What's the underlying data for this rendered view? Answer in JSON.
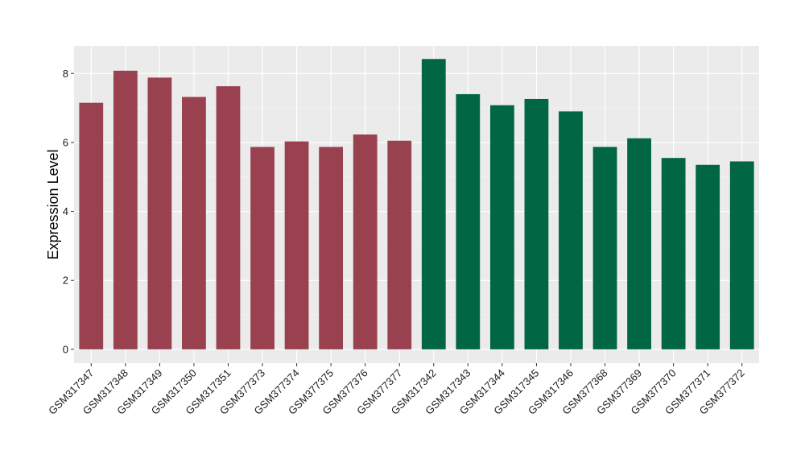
{
  "chart_data": {
    "type": "bar",
    "title": "",
    "xlabel": "",
    "ylabel": "Expression Level",
    "ylim": [
      -0.4,
      8.8
    ],
    "yticks": [
      0,
      2,
      4,
      6,
      8
    ],
    "grid": true,
    "legend": "none",
    "background_color": "#ebebeb",
    "categories": [
      "GSM317347",
      "GSM317348",
      "GSM317349",
      "GSM317350",
      "GSM317351",
      "GSM377373",
      "GSM377374",
      "GSM377375",
      "GSM377376",
      "GSM377377",
      "GSM317342",
      "GSM317343",
      "GSM317344",
      "GSM317345",
      "GSM317346",
      "GSM377368",
      "GSM377369",
      "GSM377370",
      "GSM377371",
      "GSM377372"
    ],
    "values": [
      7.15,
      8.08,
      7.88,
      7.32,
      7.63,
      5.87,
      6.03,
      5.87,
      6.23,
      6.05,
      8.42,
      7.4,
      7.08,
      7.26,
      6.9,
      5.87,
      6.12,
      5.55,
      5.35,
      5.45
    ],
    "colors": [
      "#99414f",
      "#99414f",
      "#99414f",
      "#99414f",
      "#99414f",
      "#99414f",
      "#99414f",
      "#99414f",
      "#99414f",
      "#99414f",
      "#006643",
      "#006643",
      "#006643",
      "#006643",
      "#006643",
      "#006643",
      "#006643",
      "#006643",
      "#006643",
      "#006643"
    ]
  }
}
